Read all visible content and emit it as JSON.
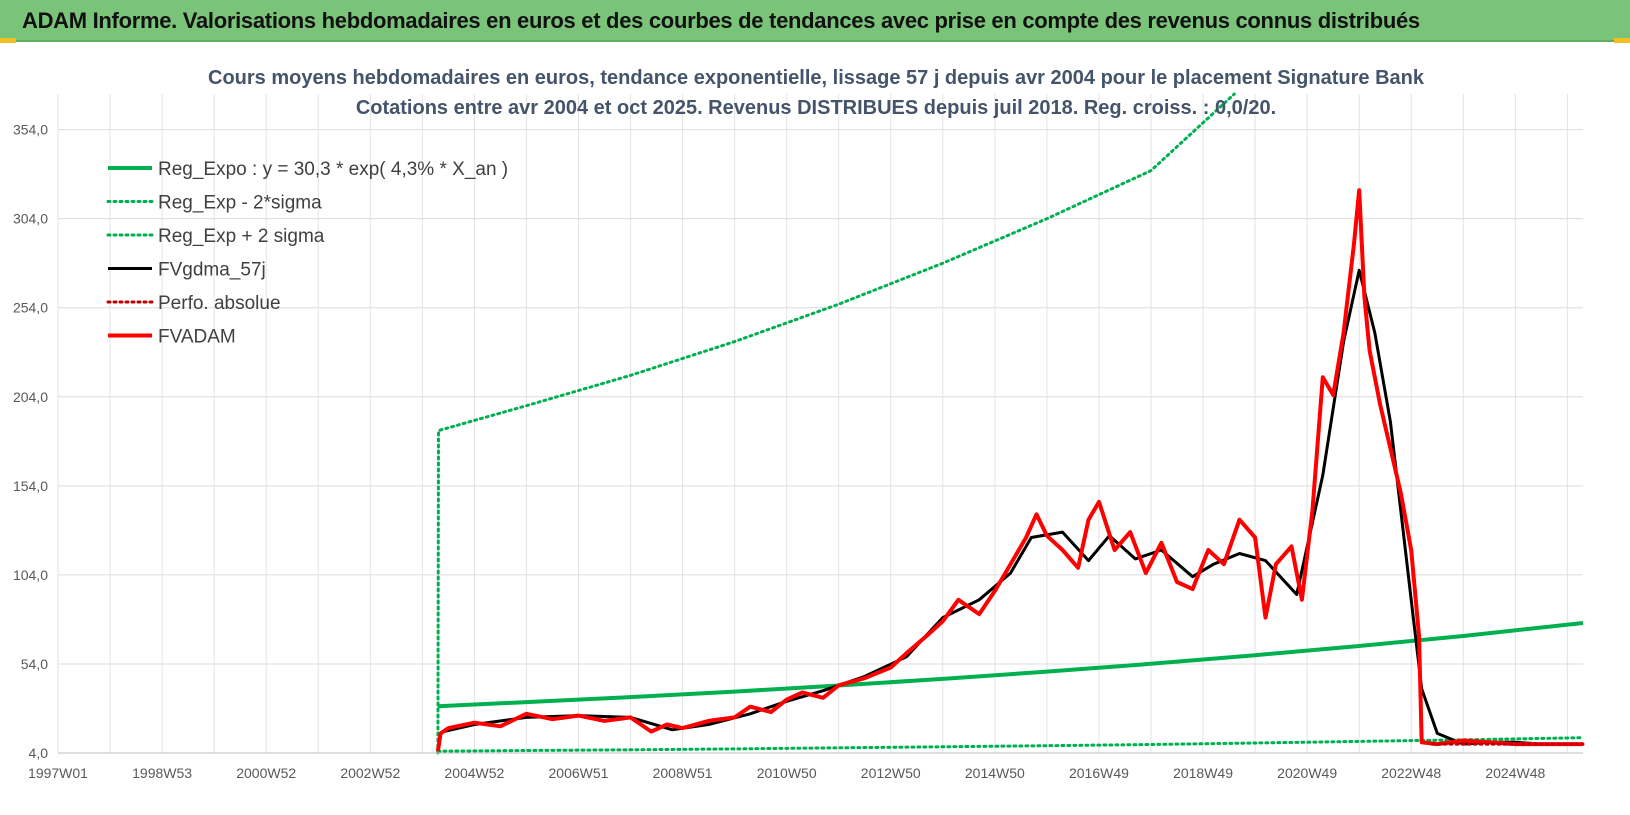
{
  "header": {
    "title": "ADAM Informe. Valorisations hebdomadaires en euros et des courbes de tendances avec prise en compte des revenus connus distribués"
  },
  "chart_data": {
    "type": "line",
    "title_line1": "Cours moyens hebdomadaires en euros, tendance exponentielle, lissage 57 j depuis avr 2004 pour le placement Signature Bank",
    "title_line2": "Cotations entre avr 2004 et oct 2025. Revenus DISTRIBUES depuis juil 2018. Reg. croiss. : 0,0/20.",
    "xlabel": "",
    "ylabel": "",
    "x_tick_labels": [
      "1997W01",
      "1998W53",
      "2000W52",
      "2002W52",
      "2004W52",
      "2006W51",
      "2008W51",
      "2010W50",
      "2012W50",
      "2014W50",
      "2016W49",
      "2018W49",
      "2020W49",
      "2022W48",
      "2024W48"
    ],
    "x_tick_years": [
      1997.0,
      1999.0,
      2001.0,
      2003.0,
      2005.0,
      2007.0,
      2009.0,
      2011.0,
      2013.0,
      2015.0,
      2017.0,
      2019.0,
      2021.0,
      2023.0,
      2025.0
    ],
    "xlim": [
      1997.0,
      2026.3
    ],
    "y_ticks": [
      4.0,
      54.0,
      104.0,
      154.0,
      204.0,
      254.0,
      304.0,
      354.0
    ],
    "y_tick_labels": [
      "4,0",
      "54,0",
      "104,0",
      "154,0",
      "204,0",
      "254,0",
      "304,0",
      "354,0"
    ],
    "ylim": [
      4.0,
      374.0
    ],
    "grid": true,
    "legend_position": "top-left",
    "series": [
      {
        "name": "Reg_Expo : y = 30,3 * exp( 4,3% *  X_an )",
        "color": "#00b050",
        "style": "solid",
        "width": 4,
        "x": [
          2004.3,
          2006,
          2008,
          2010,
          2012,
          2014,
          2016,
          2018,
          2020,
          2022,
          2024,
          2026.3
        ],
        "y": [
          30.3,
          32.6,
          35.4,
          38.5,
          41.9,
          45.6,
          49.7,
          54.1,
          58.9,
          64.1,
          69.7,
          77.0
        ]
      },
      {
        "name": "Reg_Exp - 2*sigma",
        "color": "#00b050",
        "style": "dotted",
        "width": 3,
        "x": [
          2004.3,
          2006,
          2008,
          2010,
          2012,
          2014,
          2016,
          2018,
          2020,
          2022,
          2024,
          2026.3
        ],
        "y": [
          5.0,
          5.4,
          5.8,
          6.3,
          6.9,
          7.5,
          8.1,
          8.8,
          9.6,
          10.5,
          11.4,
          12.6
        ]
      },
      {
        "name": "Reg_Exp + 2 sigma",
        "color": "#00b050",
        "style": "dotted",
        "width": 3,
        "x": [
          2004.3,
          2004.31,
          2006,
          2008,
          2010,
          2012,
          2014,
          2016,
          2018,
          2019.6
        ],
        "y": [
          4.0,
          185.0,
          199.0,
          216.0,
          235.0,
          256.0,
          279.0,
          304.0,
          331.0,
          374.0
        ]
      },
      {
        "name": "FVgdma_57j",
        "color": "#000000",
        "style": "solid",
        "width": 3,
        "x": [
          2004.4,
          2005,
          2006,
          2007,
          2008,
          2008.8,
          2009.5,
          2010.3,
          2011,
          2011.7,
          2012.5,
          2013.3,
          2014,
          2014.7,
          2015.3,
          2015.7,
          2016.3,
          2016.8,
          2017.2,
          2017.7,
          2018.2,
          2018.8,
          2019.2,
          2019.7,
          2020.2,
          2020.8,
          2021.3,
          2021.7,
          2022,
          2022.3,
          2022.6,
          2022.8,
          2023,
          2023.2,
          2023.5,
          2024,
          2024.5,
          2025,
          2025.5,
          2026.3
        ],
        "y": [
          16,
          20,
          24,
          25,
          24,
          17,
          20,
          26,
          33,
          39,
          47,
          58,
          80,
          90,
          105,
          125,
          128,
          112,
          126,
          113,
          118,
          103,
          110,
          116,
          112,
          93,
          160,
          235,
          275,
          240,
          190,
          140,
          90,
          40,
          15,
          9,
          10,
          10,
          9,
          9
        ]
      },
      {
        "name": "Perfo. absolue",
        "color": "#c00000",
        "style": "dotted",
        "width": 3,
        "x": [
          2023.4,
          2026.3
        ],
        "y": [
          9,
          9
        ]
      },
      {
        "name": "FVADAM",
        "color": "#ff0000",
        "style": "solid",
        "width": 4,
        "x": [
          2004.3,
          2004.35,
          2004.5,
          2005,
          2005.5,
          2006,
          2006.5,
          2007,
          2007.5,
          2008,
          2008.4,
          2008.7,
          2009,
          2009.5,
          2010,
          2010.3,
          2010.7,
          2011,
          2011.3,
          2011.7,
          2012,
          2012.5,
          2013,
          2013.3,
          2013.7,
          2014,
          2014.3,
          2014.7,
          2015,
          2015.3,
          2015.6,
          2015.8,
          2016,
          2016.3,
          2016.6,
          2016.8,
          2017,
          2017.3,
          2017.6,
          2017.9,
          2018.2,
          2018.5,
          2018.8,
          2019.1,
          2019.4,
          2019.7,
          2020,
          2020.2,
          2020.4,
          2020.7,
          2020.9,
          2021.1,
          2021.3,
          2021.5,
          2021.7,
          2021.9,
          2022.0,
          2022.1,
          2022.2,
          2022.4,
          2022.6,
          2022.8,
          2023.0,
          2023.15,
          2023.2,
          2023.5,
          2024,
          2024.5,
          2025,
          2025.5,
          2026.3
        ],
        "y": [
          5,
          15,
          18,
          21,
          19,
          26,
          23,
          25,
          22,
          24,
          16,
          20,
          18,
          22,
          24,
          30,
          27,
          34,
          38,
          35,
          42,
          46,
          52,
          60,
          70,
          78,
          90,
          82,
          95,
          110,
          125,
          138,
          126,
          118,
          108,
          135,
          145,
          118,
          128,
          105,
          122,
          100,
          96,
          118,
          110,
          135,
          125,
          80,
          110,
          120,
          90,
          140,
          215,
          205,
          240,
          290,
          320,
          260,
          230,
          200,
          175,
          150,
          118,
          70,
          10,
          9,
          11,
          10,
          9,
          9,
          9
        ]
      }
    ]
  }
}
